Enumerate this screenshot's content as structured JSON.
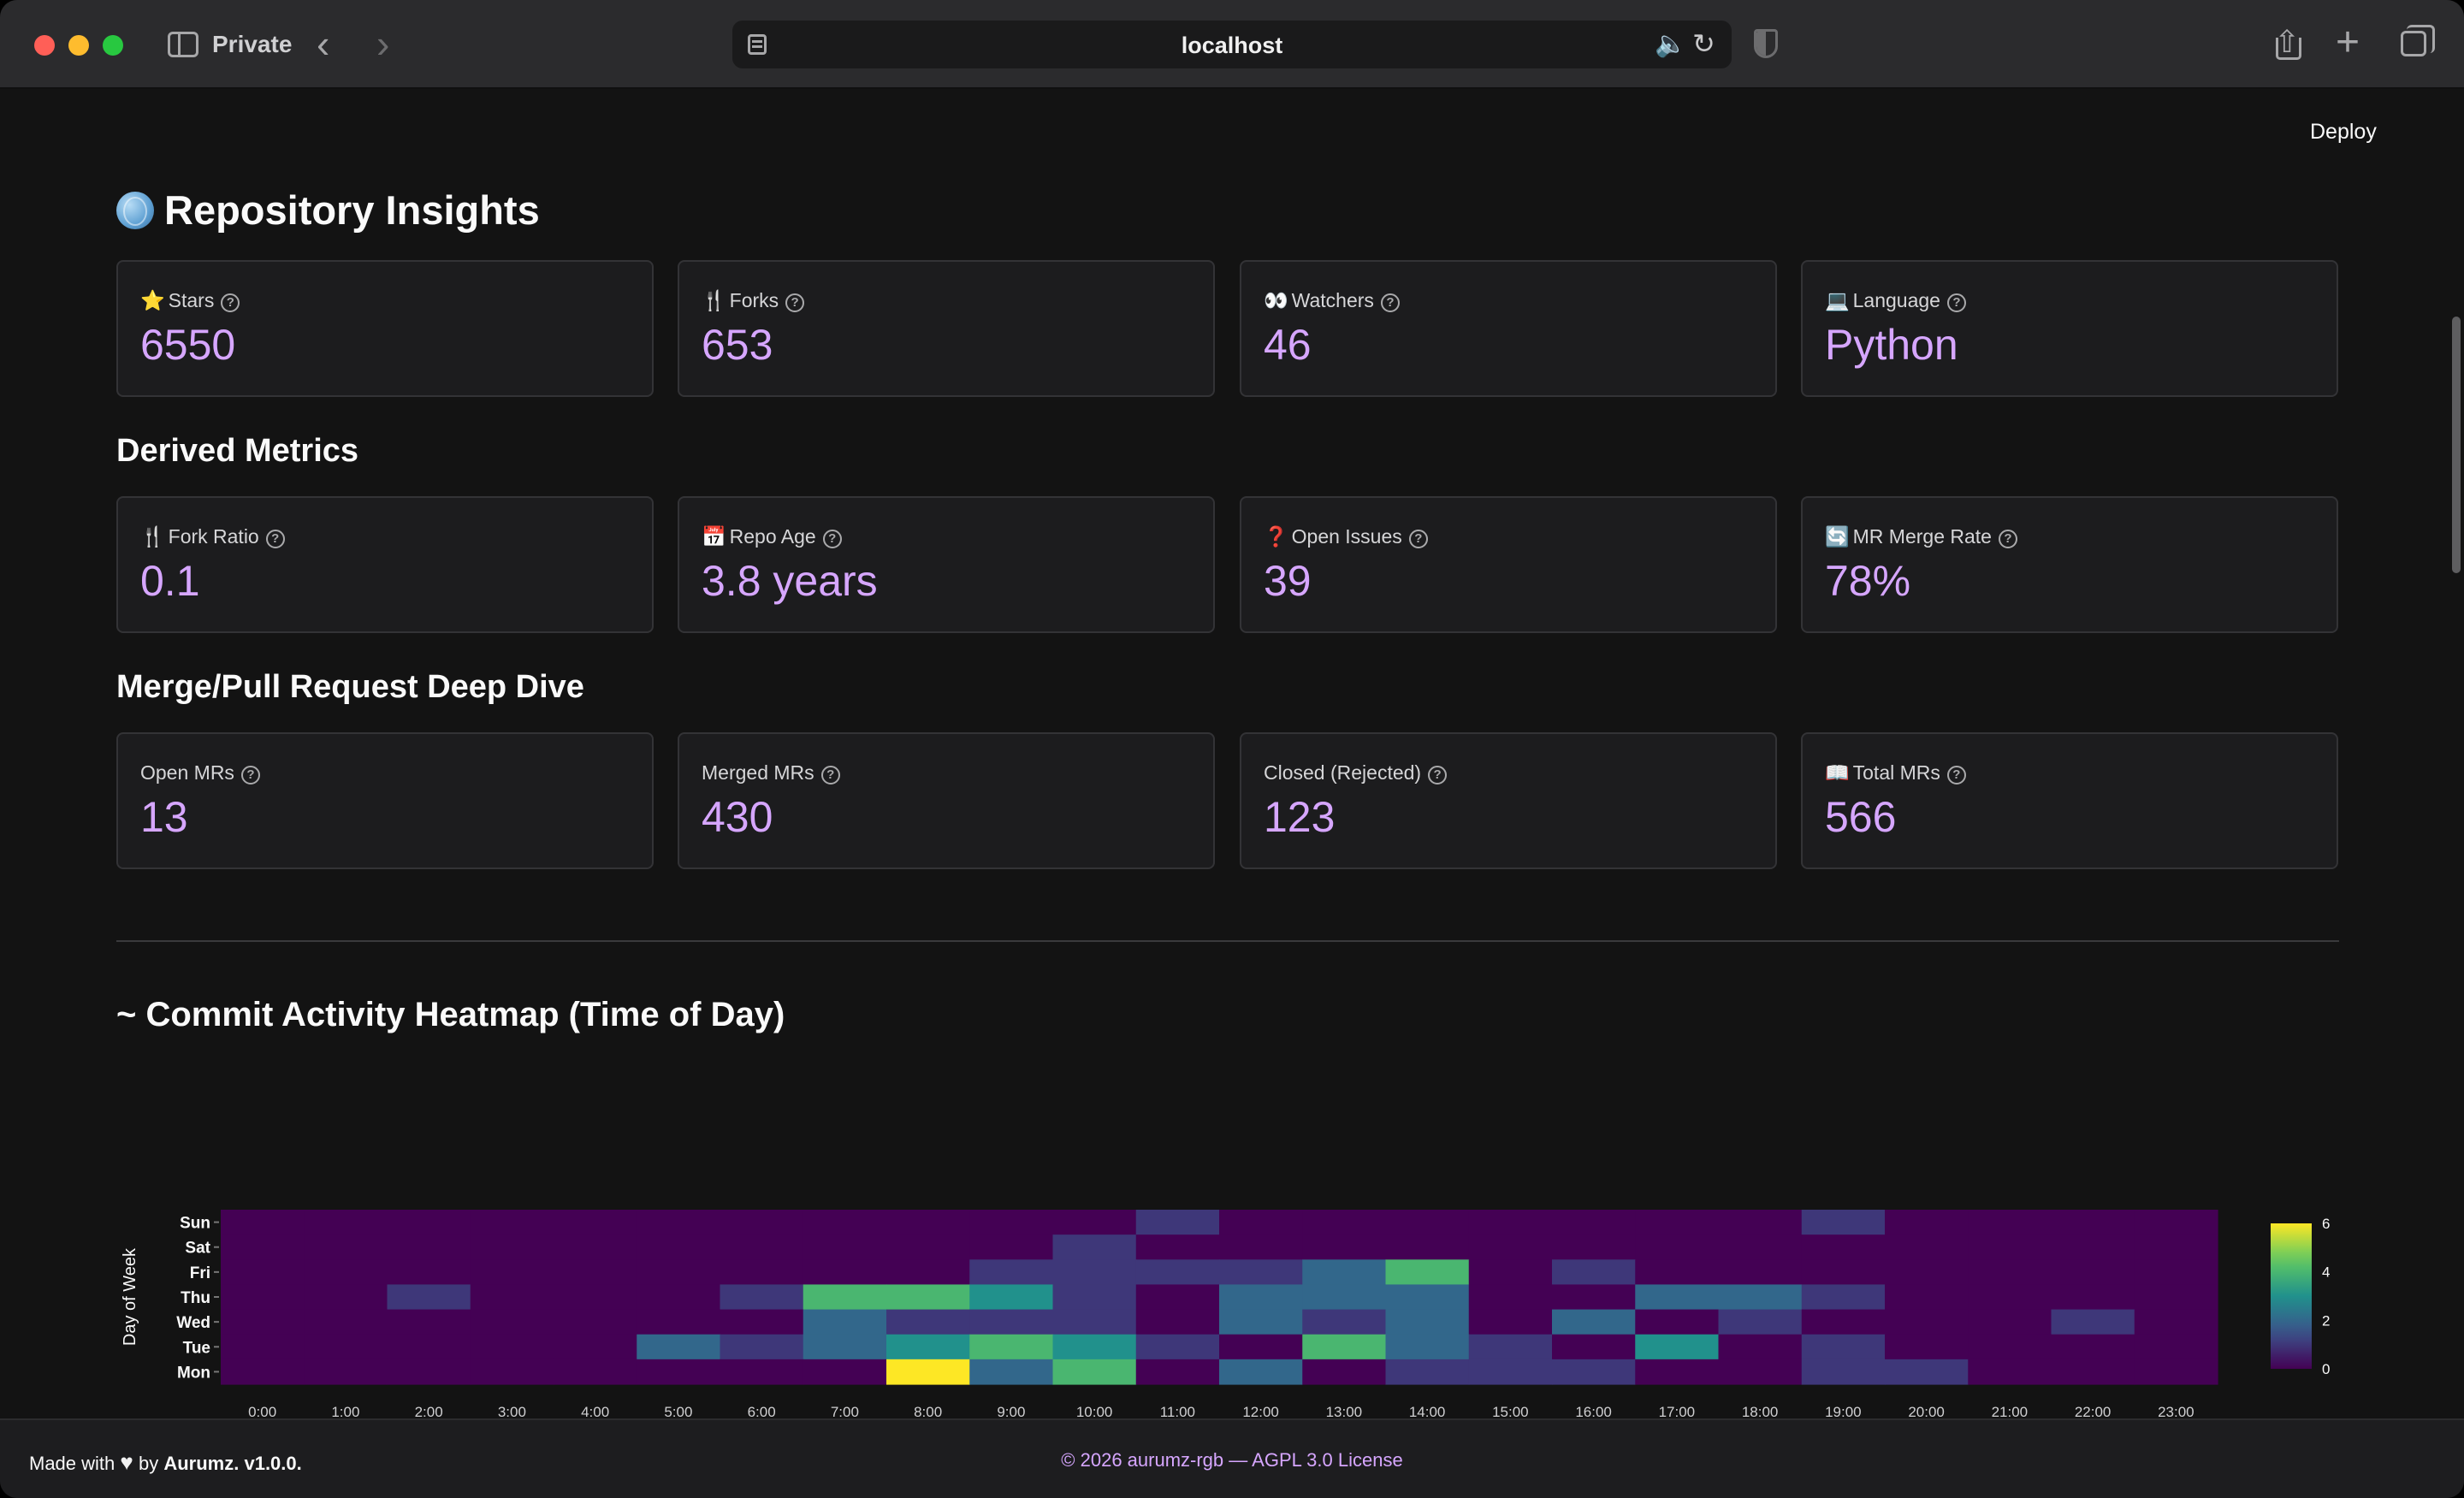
{
  "browser": {
    "mode_label": "Private",
    "url": "localhost"
  },
  "toolbar": {
    "deploy_label": "Deploy"
  },
  "page": {
    "title": "Repository Insights"
  },
  "basic_metrics": [
    {
      "emoji": "⭐",
      "label": "Stars",
      "value": "6550"
    },
    {
      "emoji": "🍴",
      "label": "Forks",
      "value": "653"
    },
    {
      "emoji": "👀",
      "label": "Watchers",
      "value": "46"
    },
    {
      "emoji": "💻",
      "label": "Language",
      "value": "Python"
    }
  ],
  "derived": {
    "title": "Derived Metrics",
    "metrics": [
      {
        "emoji": "🍴",
        "label": "Fork Ratio",
        "value": "0.1"
      },
      {
        "emoji": "📅",
        "label": "Repo Age",
        "value": "3.8 years"
      },
      {
        "emoji": "❓",
        "label": "Open Issues",
        "value": "39"
      },
      {
        "emoji": "🔄",
        "label": "MR Merge Rate",
        "value": "78%"
      }
    ]
  },
  "mr": {
    "title": "Merge/Pull Request Deep Dive",
    "metrics": [
      {
        "emoji": "",
        "label": "Open MRs",
        "value": "13"
      },
      {
        "emoji": "",
        "label": "Merged MRs",
        "value": "430"
      },
      {
        "emoji": "",
        "label": "Closed (Rejected)",
        "value": "123"
      },
      {
        "emoji": "📖",
        "label": "Total MRs",
        "value": "566"
      }
    ]
  },
  "heatmap_section": {
    "title": "~ Commit Activity Heatmap (Time of Day)"
  },
  "chart_data": {
    "type": "heatmap",
    "ylabel": "Day of Week",
    "x": [
      "0:00",
      "1:00",
      "2:00",
      "3:00",
      "4:00",
      "5:00",
      "6:00",
      "7:00",
      "8:00",
      "9:00",
      "10:00",
      "11:00",
      "12:00",
      "13:00",
      "14:00",
      "15:00",
      "16:00",
      "17:00",
      "18:00",
      "19:00",
      "20:00",
      "21:00",
      "22:00",
      "23:00"
    ],
    "y": [
      "Sun",
      "Sat",
      "Fri",
      "Thu",
      "Wed",
      "Tue",
      "Mon"
    ],
    "z": [
      [
        0,
        0,
        0,
        0,
        0,
        0,
        0,
        0,
        0,
        0,
        0,
        1,
        0,
        0,
        0,
        0,
        0,
        0,
        0,
        1,
        0,
        0,
        0,
        0
      ],
      [
        0,
        0,
        0,
        0,
        0,
        0,
        0,
        0,
        0,
        0,
        1,
        0,
        0,
        0,
        0,
        0,
        0,
        0,
        0,
        0,
        0,
        0,
        0,
        0
      ],
      [
        0,
        0,
        0,
        0,
        0,
        0,
        0,
        0,
        0,
        1,
        1,
        1,
        1,
        2,
        4,
        0,
        1,
        0,
        0,
        0,
        0,
        0,
        0,
        0
      ],
      [
        0,
        0,
        1,
        0,
        0,
        0,
        1,
        4,
        4,
        3,
        1,
        0,
        2,
        2,
        2,
        0,
        0,
        2,
        2,
        1,
        0,
        0,
        0,
        0
      ],
      [
        0,
        0,
        0,
        0,
        0,
        0,
        0,
        2,
        1,
        1,
        1,
        0,
        2,
        1,
        2,
        0,
        2,
        0,
        1,
        0,
        0,
        0,
        1,
        0
      ],
      [
        0,
        0,
        0,
        0,
        0,
        2,
        1,
        2,
        3,
        4,
        3,
        1,
        0,
        4,
        2,
        1,
        0,
        3,
        0,
        1,
        0,
        0,
        0,
        0
      ],
      [
        0,
        0,
        0,
        0,
        0,
        0,
        0,
        0,
        6,
        2,
        4,
        0,
        2,
        0,
        1,
        1,
        1,
        0,
        0,
        1,
        1,
        0,
        0,
        0
      ]
    ],
    "zmin": 0,
    "zmax": 6,
    "colorscale": "Viridis",
    "colorbar_ticks": [
      0,
      2,
      4,
      6
    ]
  },
  "footer": {
    "made_with": "Made with",
    "heart_icon": "heart-icon",
    "by": "by",
    "brand": "Aurumz.",
    "version": "v1.0.0.",
    "license": "© 2026 aurumz-rgb — AGPL 3.0 License"
  }
}
